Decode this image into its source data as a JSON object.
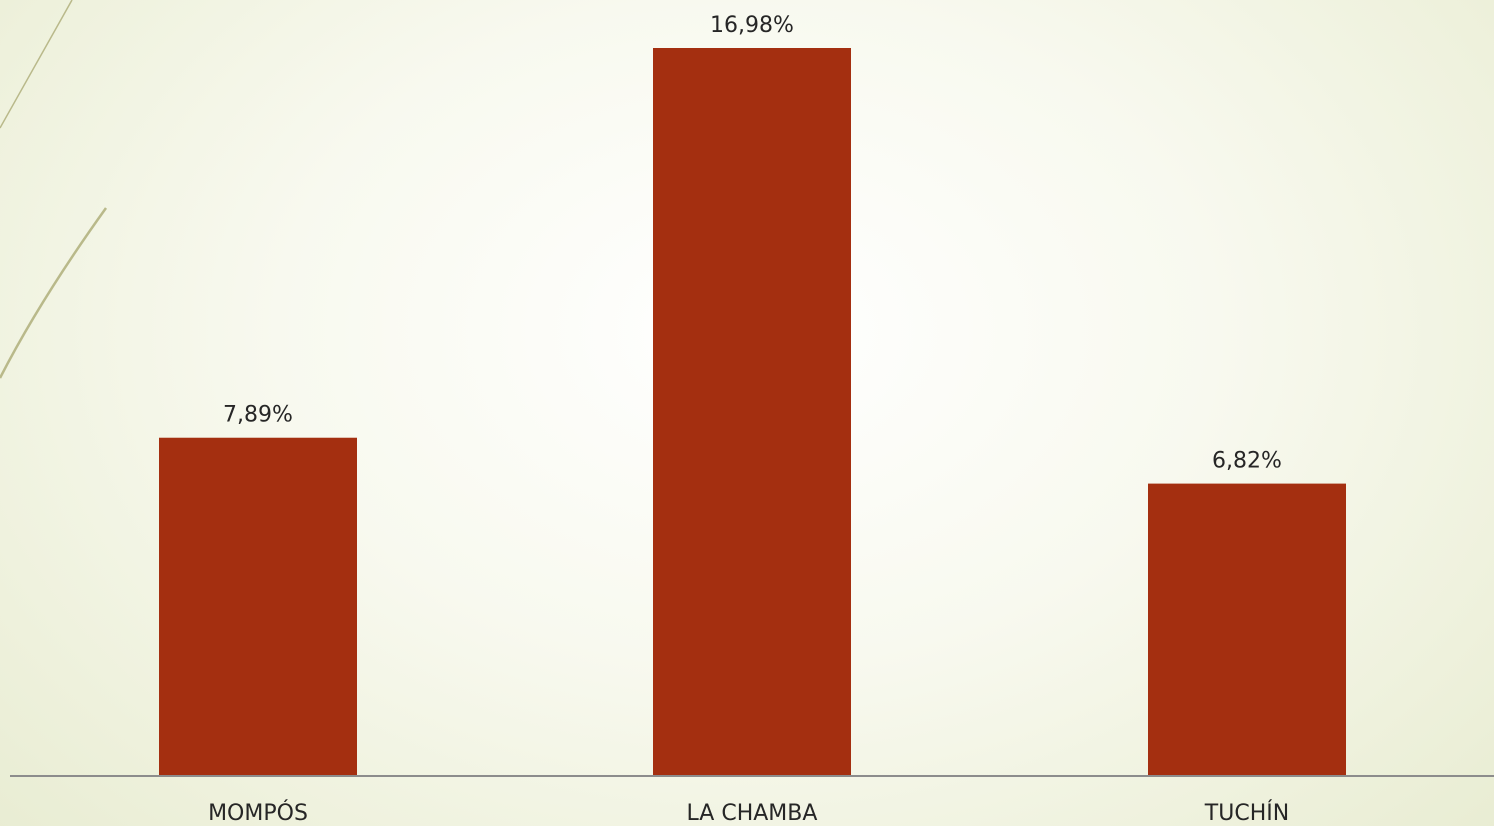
{
  "chart_data": {
    "type": "bar",
    "categories": [
      "MOMPÓS",
      "LA CHAMBA",
      "TUCHÍN"
    ],
    "values": [
      7.89,
      16.98,
      6.82
    ],
    "data_labels": [
      "7,89%",
      "16,98%",
      "6,82%"
    ],
    "title": "",
    "xlabel": "",
    "ylabel": "",
    "ylim": [
      0,
      18
    ],
    "grid": false,
    "legend": "none",
    "bar_color": "#A42F10",
    "axis_color": "#8C8C8C"
  },
  "theme": {
    "decoration_line_color": "#B9B98A"
  }
}
